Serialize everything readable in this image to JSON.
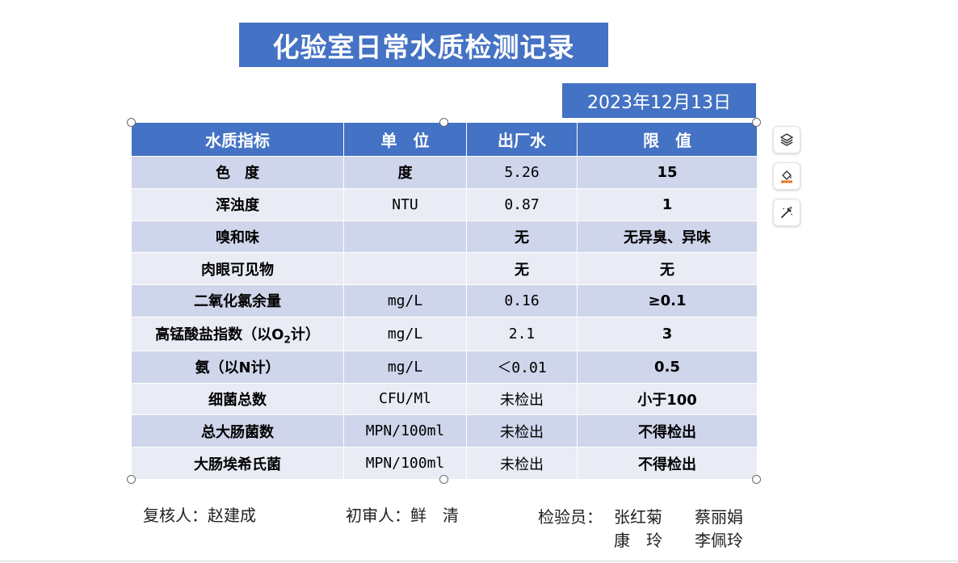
{
  "title": "化验室日常水质检测记录",
  "date": "2023年12月13日",
  "table": {
    "headers": [
      "水质指标",
      "单　位",
      "出厂水",
      "限　值"
    ],
    "rows": [
      {
        "name": "色　度",
        "unit": "度",
        "value": "5.26",
        "limit": "15"
      },
      {
        "name": "浑浊度",
        "unit": "NTU",
        "value": "0.87",
        "limit": "1"
      },
      {
        "name": "嗅和味",
        "unit": "",
        "value": "无",
        "limit": "无异臭、异味"
      },
      {
        "name": "肉眼可见物",
        "unit": "",
        "value": "无",
        "limit": "无"
      },
      {
        "name": "二氧化氯余量",
        "unit": "mg/L",
        "value": "0.16",
        "limit": "≥0.1"
      },
      {
        "name_prefix": "高锰酸盐指数（以O",
        "name_sub": "2",
        "name_suffix": "计）",
        "unit": "mg/L",
        "value": "2.1",
        "limit": "3"
      },
      {
        "name": "氨（以N计）",
        "unit": "mg/L",
        "value": "＜0.01",
        "limit": "0.5"
      },
      {
        "name": "细菌总数",
        "unit": "CFU/Ml",
        "value": "未检出",
        "limit": "小于100"
      },
      {
        "name": "总大肠菌数",
        "unit": "MPN/100ml",
        "value": "未检出",
        "limit": "不得检出"
      },
      {
        "name": "大肠埃希氏菌",
        "unit": "MPN/100ml",
        "value": "未检出",
        "limit": "不得检出"
      }
    ]
  },
  "signatures": {
    "reviewer": "复核人：赵建成",
    "first_reviewer": "初审人：鲜　清",
    "inspector_label": "检验员：",
    "inspectors_line1": "张红菊　　蔡丽娟",
    "inspectors_line2": "康　玲　　李佩玲"
  },
  "side_toolbar": [
    "layers-icon",
    "fill-icon",
    "magic-wand-icon"
  ],
  "colors": {
    "accent": "#4472c4",
    "row_dark": "#cfd5ea",
    "row_light": "#e9ebf5"
  }
}
